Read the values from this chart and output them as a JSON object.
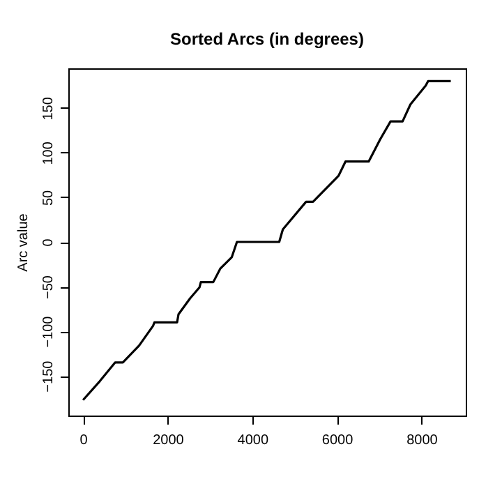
{
  "chart_data": {
    "type": "line",
    "title": "Sorted Arcs (in degrees)",
    "ylabel": "Arc value",
    "xlim": [
      -348,
      9048
    ],
    "ylim": [
      -194.4,
      194.4
    ],
    "xticks": [
      0,
      2000,
      4000,
      6000,
      8000
    ],
    "yticks": [
      -150,
      -100,
      -50,
      0,
      50,
      100,
      150
    ],
    "grid": false,
    "series": [
      {
        "color": "#000000",
        "x": [
          0,
          395,
          757,
          941,
          1326,
          1655,
          1688,
          2224,
          2257,
          2533,
          2752,
          2785,
          3079,
          3243,
          3517,
          3638,
          4638,
          4724,
          5273,
          5438,
          6040,
          6204,
          6753,
          7026,
          7270,
          7555,
          7740,
          8102,
          8157,
          8694
        ],
        "values": [
          -177,
          -156,
          -135,
          -135,
          -116,
          -94,
          -90,
          -90,
          -81,
          -63,
          -51,
          -45,
          -45,
          -30,
          -17,
          0,
          0,
          14,
          45,
          45,
          74,
          90,
          90,
          115,
          135,
          135,
          154,
          175,
          180,
          180
        ]
      }
    ]
  }
}
